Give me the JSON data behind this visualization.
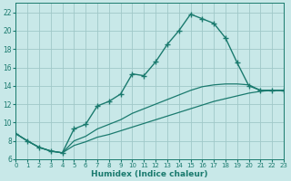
{
  "xlabel": "Humidex (Indice chaleur)",
  "bg_color": "#c8e8e8",
  "grid_color": "#a0c8c8",
  "line_color": "#1a7a6e",
  "xlim": [
    0,
    23
  ],
  "ylim": [
    6,
    23
  ],
  "xticks": [
    0,
    1,
    2,
    3,
    4,
    5,
    6,
    7,
    8,
    9,
    10,
    11,
    12,
    13,
    14,
    15,
    16,
    17,
    18,
    19,
    20,
    21,
    22,
    23
  ],
  "yticks": [
    6,
    8,
    10,
    12,
    14,
    16,
    18,
    20,
    22
  ],
  "curve1_x": [
    0,
    1,
    2,
    3,
    4,
    5,
    6,
    7,
    8,
    9,
    10,
    11,
    12,
    13,
    14,
    15,
    16,
    17,
    18,
    19,
    20,
    21,
    22,
    23
  ],
  "curve1_y": [
    8.8,
    8.0,
    7.3,
    6.9,
    6.7,
    9.3,
    9.8,
    11.8,
    12.3,
    13.1,
    15.3,
    15.1,
    16.6,
    18.5,
    20.0,
    21.8,
    21.3,
    20.8,
    19.2,
    16.5,
    14.0,
    13.5,
    13.5,
    13.5
  ],
  "curve2_x": [
    0,
    1,
    2,
    3,
    4,
    5,
    6,
    7,
    8,
    9,
    10,
    11,
    12,
    13,
    14,
    15,
    16,
    17,
    18,
    19,
    20,
    21,
    22,
    23
  ],
  "curve2_y": [
    8.8,
    8.0,
    7.3,
    6.9,
    6.7,
    8.0,
    8.5,
    9.3,
    9.8,
    10.3,
    11.0,
    11.5,
    12.0,
    12.5,
    13.0,
    13.5,
    13.9,
    14.1,
    14.2,
    14.2,
    14.1,
    13.5,
    13.5,
    13.5
  ],
  "curve3_x": [
    0,
    1,
    2,
    3,
    4,
    5,
    6,
    7,
    8,
    9,
    10,
    11,
    12,
    13,
    14,
    15,
    16,
    17,
    18,
    19,
    20,
    21,
    22,
    23
  ],
  "curve3_y": [
    8.8,
    8.0,
    7.3,
    6.9,
    6.7,
    7.5,
    7.9,
    8.4,
    8.7,
    9.1,
    9.5,
    9.9,
    10.3,
    10.7,
    11.1,
    11.5,
    11.9,
    12.3,
    12.6,
    12.9,
    13.2,
    13.4,
    13.5,
    13.5
  ]
}
